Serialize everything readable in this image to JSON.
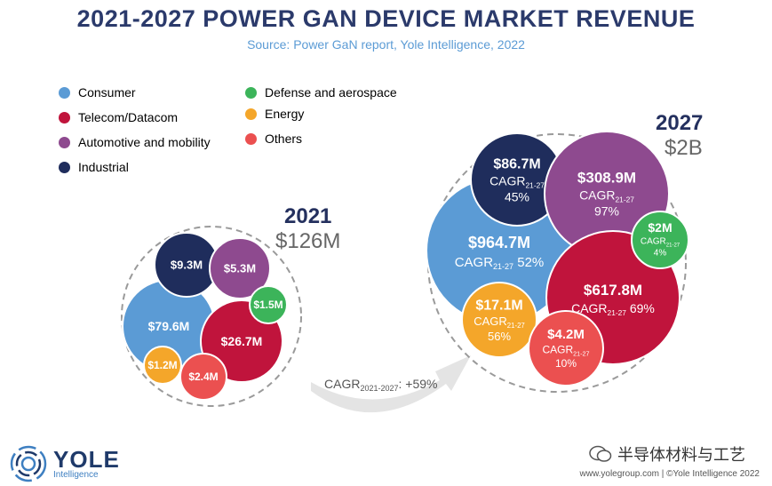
{
  "title": "2021-2027 POWER GAN DEVICE MARKET REVENUE",
  "subtitle": "Source: Power GaN report, Yole Intelligence, 2022",
  "legend": [
    {
      "label": "Consumer",
      "color": "#5b9bd5"
    },
    {
      "label": "Telecom/Datacom",
      "color": "#c0143c"
    },
    {
      "label": "Automotive and mobility",
      "color": "#8e4a8f"
    },
    {
      "label": "Industrial",
      "color": "#1f2d5c"
    },
    {
      "label": "Defense and aerospace",
      "color": "#3cb45a"
    },
    {
      "label": "Energy",
      "color": "#f4a62a"
    },
    {
      "label": "Others",
      "color": "#eb5050"
    }
  ],
  "y2021": {
    "year": "2021",
    "total": "$126M"
  },
  "y2027": {
    "year": "2027",
    "total": "$2B"
  },
  "growth": {
    "prefix": "CAGR",
    "sub": "2021-2027",
    "suffix": ": +59%"
  },
  "chart_data": {
    "type": "bubble",
    "title": "2021-2027 POWER GAN DEVICE MARKET REVENUE",
    "unit": "$M",
    "cagr_total_percent": 59,
    "series": [
      {
        "name": "Consumer",
        "value_2021": 79.6,
        "value_2027": 964.7,
        "cagr_percent": 52,
        "label_2021": "$79.6M",
        "label_2027": "$964.7M",
        "cagr_label": "52%"
      },
      {
        "name": "Telecom/Datacom",
        "value_2021": 26.7,
        "value_2027": 617.8,
        "cagr_percent": 69,
        "label_2021": "$26.7M",
        "label_2027": "$617.8M",
        "cagr_label": "69%"
      },
      {
        "name": "Automotive and mobility",
        "value_2021": 5.3,
        "value_2027": 308.9,
        "cagr_percent": 97,
        "label_2021": "$5.3M",
        "label_2027": "$308.9M",
        "cagr_label": "97%"
      },
      {
        "name": "Industrial",
        "value_2021": 9.3,
        "value_2027": 86.7,
        "cagr_percent": 45,
        "label_2021": "$9.3M",
        "label_2027": "$86.7M",
        "cagr_label": "45%"
      },
      {
        "name": "Defense and aerospace",
        "value_2021": 1.5,
        "value_2027": 2,
        "cagr_percent": 4,
        "label_2021": "$1.5M",
        "label_2027": "$2M",
        "cagr_label": "4%"
      },
      {
        "name": "Energy",
        "value_2021": 1.2,
        "value_2027": 17.1,
        "cagr_percent": 56,
        "label_2021": "$1.2M",
        "label_2027": "$17.1M",
        "cagr_label": "56%"
      },
      {
        "name": "Others",
        "value_2021": 2.4,
        "value_2027": 4.2,
        "cagr_percent": 10,
        "label_2021": "$2.4M",
        "label_2027": "$4.2M",
        "cagr_label": "10%"
      }
    ],
    "cagr_prefix": "CAGR",
    "cagr_sub": "21-27"
  },
  "footer": {
    "logo_name": "YOLE",
    "logo_sub": "Intelligence",
    "watermark": "半导体材料与工艺",
    "copyright": "www.yolegroup.com | ©Yole Intelligence 2022"
  }
}
